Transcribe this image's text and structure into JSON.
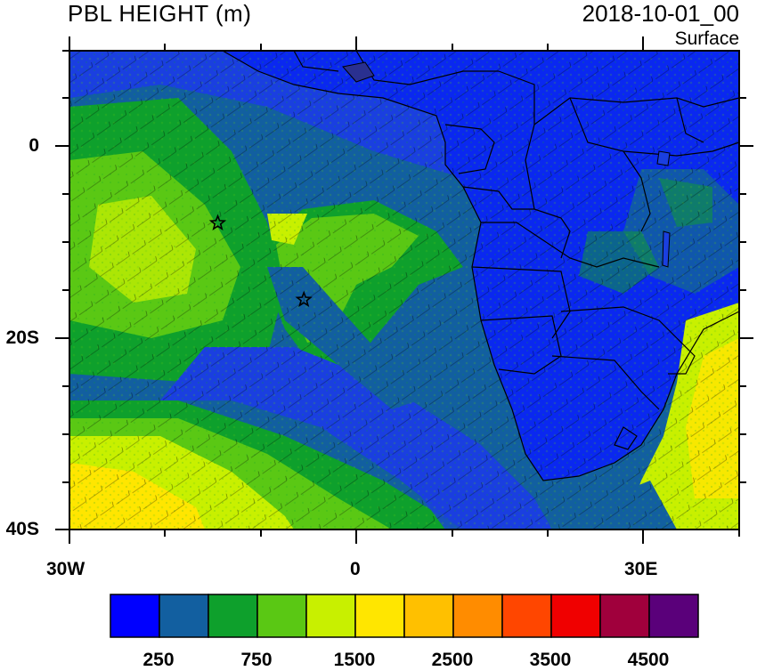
{
  "title": "PBL HEIGHT (m)",
  "datetime": "2018-10-01_00",
  "level": "Surface",
  "axes": {
    "y_ticks": [
      "0",
      "20S",
      "40S"
    ],
    "x_ticks": [
      "30W",
      "0",
      "30E"
    ]
  },
  "colorbar": {
    "labels": [
      "250",
      "750",
      "1500",
      "2500",
      "3500",
      "4500"
    ],
    "colors": [
      "#0000ff",
      "#125fa0",
      "#0ea02c",
      "#5ac814",
      "#c8f000",
      "#ffe600",
      "#ffc000",
      "#ff8c00",
      "#ff4600",
      "#f00000",
      "#a0003c",
      "#5a007a"
    ]
  },
  "palette": {
    "ocean_deep": "#1a3fe0",
    "ocean_mid": "#125fa0",
    "land_low": "#0a28f0",
    "green": "#0ea02c",
    "lightgreen": "#5ac814",
    "yellowgreen": "#c8f000",
    "yellow": "#ffe600"
  },
  "markers": [
    {
      "name": "star-marker-1",
      "lon": -14.5,
      "lat": -8
    },
    {
      "name": "star-marker-2",
      "lon": -5.5,
      "lat": -16
    }
  ]
}
